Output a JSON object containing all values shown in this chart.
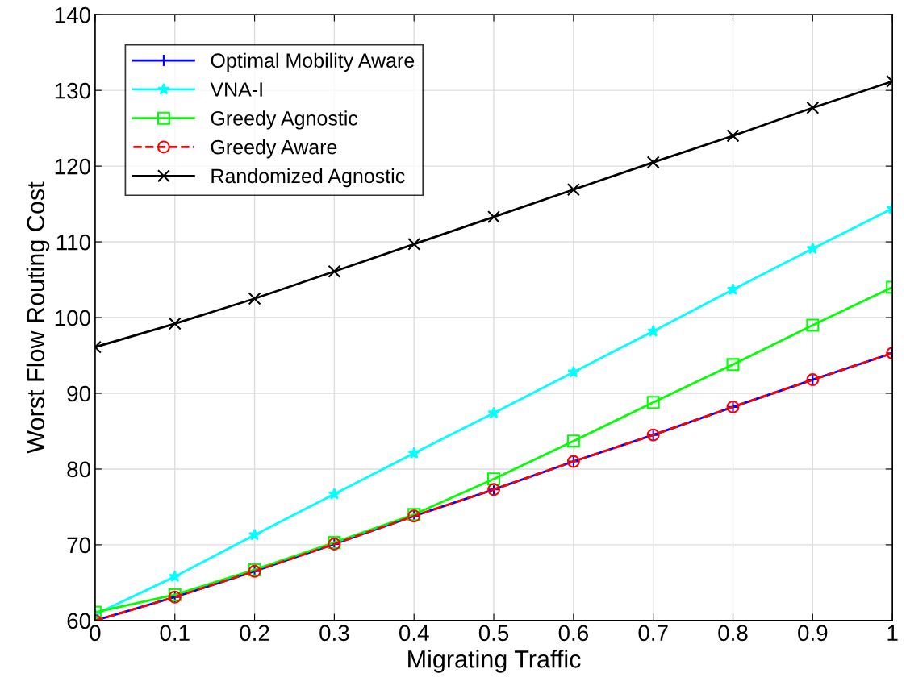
{
  "chart_data": {
    "type": "line",
    "xlabel": "Migrating Traffic",
    "ylabel": "Worst Flow Routing Cost",
    "x": [
      0,
      0.1,
      0.2,
      0.3,
      0.4,
      0.5,
      0.6,
      0.7,
      0.8,
      0.9,
      1
    ],
    "series": [
      {
        "name": "Optimal Mobility Aware",
        "color": "#0000ff",
        "marker": "plus",
        "line_style": "solid",
        "values": [
          60,
          63.1,
          66.5,
          70.1,
          73.8,
          77.3,
          81.0,
          84.5,
          88.2,
          91.8,
          95.3
        ]
      },
      {
        "name": "VNA-I",
        "color": "#00ffff",
        "marker": "star",
        "line_style": "solid",
        "values": [
          60.8,
          65.8,
          71.3,
          76.7,
          82.1,
          87.4,
          92.8,
          98.2,
          103.7,
          109.1,
          114.4
        ]
      },
      {
        "name": "Greedy Agnostic",
        "color": "#00ff00",
        "marker": "square",
        "line_style": "solid",
        "values": [
          61.1,
          63.4,
          66.7,
          70.3,
          74.0,
          78.7,
          83.7,
          88.8,
          93.8,
          99.0,
          104.0
        ]
      },
      {
        "name": "Greedy Aware",
        "color": "#ff0000",
        "marker": "circle",
        "line_style": "dashed",
        "values": [
          60,
          63.1,
          66.5,
          70.1,
          73.8,
          77.3,
          81.0,
          84.5,
          88.2,
          91.8,
          95.3
        ]
      },
      {
        "name": "Randomized Agnostic",
        "color": "#000000",
        "marker": "cross",
        "line_style": "solid",
        "values": [
          96.1,
          99.2,
          102.5,
          106.1,
          109.7,
          113.3,
          116.9,
          120.5,
          124.0,
          127.7,
          131.2
        ]
      }
    ],
    "xlim": [
      0,
      1
    ],
    "xticks": [
      0,
      0.1,
      0.2,
      0.3,
      0.4,
      0.5,
      0.6,
      0.7,
      0.8,
      0.9,
      1
    ],
    "ylim": [
      60,
      140
    ],
    "yticks": [
      60,
      70,
      80,
      90,
      100,
      110,
      120,
      130,
      140
    ],
    "grid": true,
    "legend": "top left"
  }
}
